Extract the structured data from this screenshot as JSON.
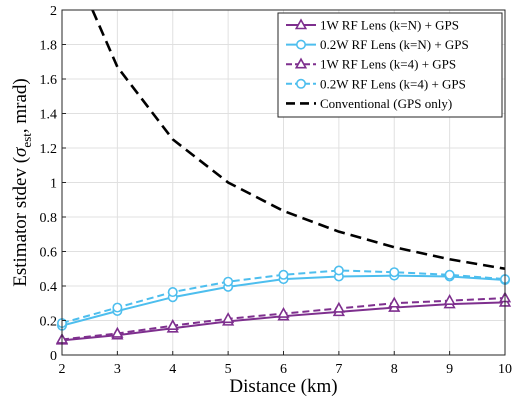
{
  "chart_data": {
    "type": "line",
    "xlabel": "Distance (km)",
    "ylabel_main": "Estimator stdev (",
    "ylabel_symbol": "σ",
    "ylabel_sub": "est",
    "ylabel_end": ", mrad)",
    "xlim": [
      2,
      10
    ],
    "ylim": [
      0,
      2
    ],
    "xticks": [
      "2",
      "3",
      "4",
      "5",
      "6",
      "7",
      "8",
      "9",
      "10"
    ],
    "yticks": [
      "0",
      "0.2",
      "0.4",
      "0.6",
      "0.8",
      "1",
      "1.2",
      "1.4",
      "1.6",
      "1.8",
      "2"
    ],
    "grid": true,
    "legend_position": "top-right",
    "series": [
      {
        "name": "1W RF Lens (k=N) + GPS",
        "color": "#7e2f8e",
        "dash": "solid",
        "marker": "triangle",
        "x": [
          2,
          3,
          4,
          5,
          6,
          7,
          8,
          9,
          10
        ],
        "y": [
          0.085,
          0.115,
          0.155,
          0.195,
          0.225,
          0.25,
          0.275,
          0.295,
          0.305
        ],
        "marker_x": [
          2,
          3,
          4,
          5,
          6,
          7,
          8,
          9,
          10
        ]
      },
      {
        "name": "0.2W RF Lens (k=N) + GPS",
        "color": "#4dbeee",
        "dash": "solid",
        "marker": "circle",
        "x": [
          2,
          3,
          4,
          5,
          6,
          7,
          8,
          9,
          10
        ],
        "y": [
          0.17,
          0.255,
          0.335,
          0.395,
          0.44,
          0.455,
          0.46,
          0.455,
          0.435
        ],
        "marker_x": [
          2,
          3,
          4,
          5,
          6,
          7,
          8,
          9,
          10
        ]
      },
      {
        "name": "1W RF Lens (k=4) + GPS",
        "color": "#7e2f8e",
        "dash": "dashed",
        "marker": "triangle",
        "x": [
          2,
          3,
          4,
          5,
          6,
          7,
          8,
          9,
          10
        ],
        "y": [
          0.09,
          0.125,
          0.17,
          0.21,
          0.24,
          0.27,
          0.3,
          0.315,
          0.33
        ],
        "marker_x": [
          2,
          3,
          4,
          5,
          6,
          7,
          8,
          9,
          10
        ]
      },
      {
        "name": "0.2W RF Lens (k=4) + GPS",
        "color": "#4dbeee",
        "dash": "dashed",
        "marker": "circle",
        "x": [
          2,
          3,
          4,
          5,
          6,
          7,
          8,
          9,
          10
        ],
        "y": [
          0.185,
          0.275,
          0.365,
          0.425,
          0.465,
          0.49,
          0.48,
          0.465,
          0.44
        ],
        "marker_x": [
          2,
          3,
          4,
          5,
          6,
          7,
          8,
          9,
          10
        ]
      },
      {
        "name": "Conventional (GPS only)",
        "color": "#000000",
        "dash": "dashed",
        "marker": "none",
        "x": [
          2.55,
          3,
          4,
          5,
          6,
          7,
          8,
          9,
          10
        ],
        "y": [
          2.0,
          1.67,
          1.25,
          1.0,
          0.835,
          0.715,
          0.625,
          0.555,
          0.5
        ],
        "marker_x": []
      }
    ]
  }
}
